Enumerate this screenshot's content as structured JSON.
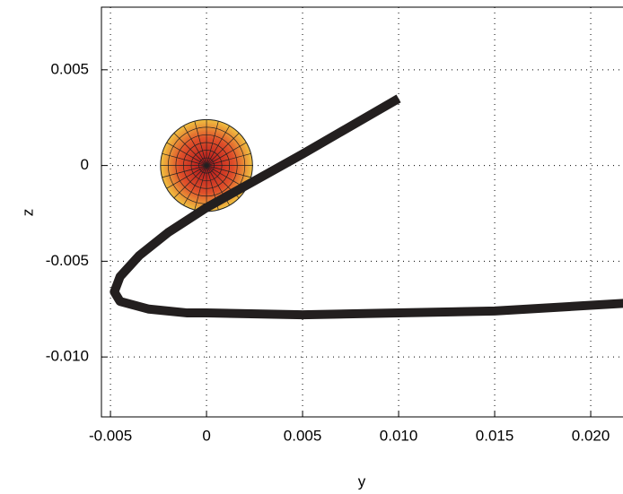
{
  "chart_data": {
    "type": "line",
    "x_label": "y",
    "y_label": "z",
    "x": [
      0.01,
      0.005,
      0.0,
      -0.002,
      -0.0035,
      -0.0045,
      -0.0048,
      -0.0045,
      -0.003,
      -0.001,
      0.0,
      0.005,
      0.01,
      0.015,
      0.0217
    ],
    "values": [
      0.0035,
      0.0006,
      -0.0022,
      -0.0035,
      -0.0047,
      -0.0058,
      -0.0066,
      -0.0071,
      -0.0075,
      -0.0077,
      -0.0077,
      -0.0078,
      -0.0077,
      -0.0076,
      -0.0072
    ],
    "color": "#231f1f",
    "sphere": {
      "center": [
        0,
        0
      ],
      "radius": 0.0024
    },
    "xlim": [
      -0.00547,
      0.02168
    ],
    "ylim": [
      -0.01313,
      0.00827
    ],
    "xticks": [
      -0.005,
      0,
      0.005,
      {
        "value": 0.01,
        "label": "0.010"
      },
      0.015,
      {
        "value": 0.02,
        "label": "0.020"
      }
    ],
    "yticks": [
      {
        "value": -0.01,
        "label": "-0.010"
      },
      -0.005,
      0,
      0.005
    ],
    "grid": true
  }
}
